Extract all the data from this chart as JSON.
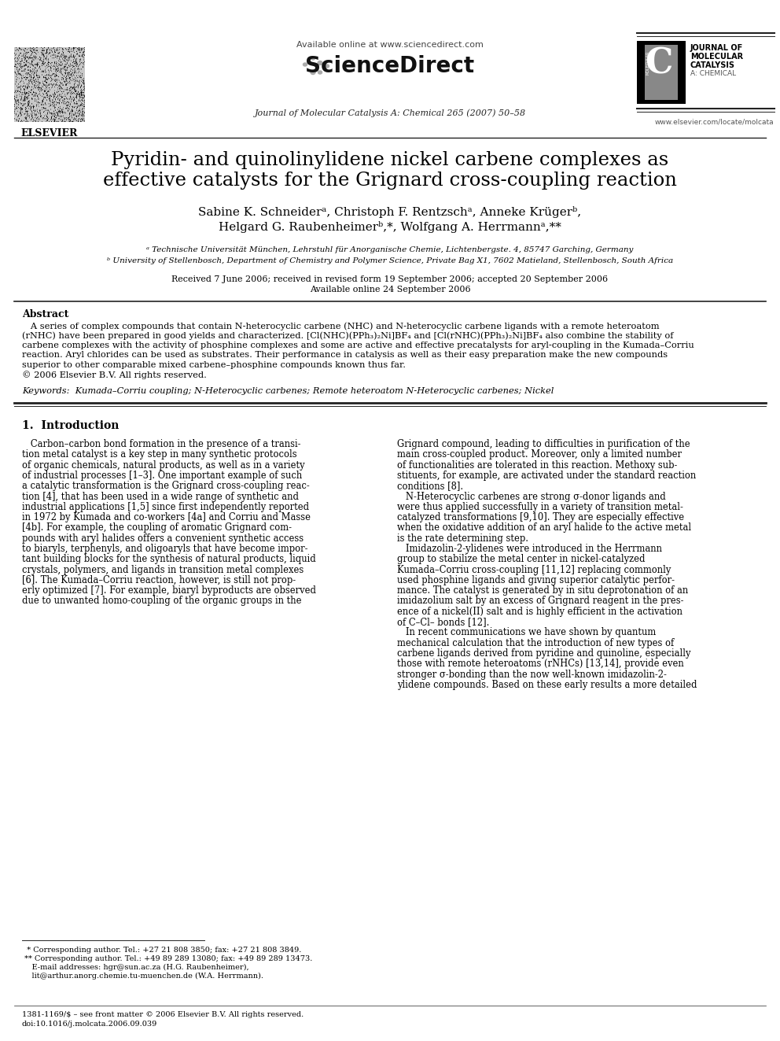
{
  "bg_color": "#ffffff",
  "header_available_online": "Available online at www.sciencedirect.com",
  "journal_line": "Journal of Molecular Catalysis A: Chemical 265 (2007) 50–58",
  "elsevier_url": "www.elsevier.com/locate/molcata",
  "title_line1": "Pyridin- and quinolinylidene nickel carbene complexes as",
  "title_line2": "effective catalysts for the Grignard cross-coupling reaction",
  "authors": "Sabine K. Schneiderᵃ, Christoph F. Rentzschᵃ, Anneke Krügerᵇ,",
  "authors2": "Helgard G. Raubenheimerᵇ,*, Wolfgang A. Herrmannᵃ,**",
  "affil_a": "ᵃ Technische Universität München, Lehrstuhl für Anorganische Chemie, Lichtenbergste. 4, 85747 Garching, Germany",
  "affil_b": "ᵇ University of Stellenbosch, Department of Chemistry and Polymer Science, Private Bag X1, 7602 Matieland, Stellenbosch, South Africa",
  "received": "Received 7 June 2006; received in revised form 19 September 2006; accepted 20 September 2006",
  "available": "Available online 24 September 2006",
  "abstract_title": "Abstract",
  "abs_lines": [
    "   A series of complex compounds that contain N-heterocyclic carbene (NHC) and N-heterocyclic carbene ligands with a remote heteroatom",
    "(rNHC) have been prepared in good yields and characterized. [Cl(NHC)(PPh₃)₂Ni]BF₄ and [Cl(rNHC)(PPh₃)₂Ni]BF₄ also combine the stability of",
    "carbene complexes with the activity of phosphine complexes and some are active and effective precatalysts for aryl-coupling in the Kumada–Corriu",
    "reaction. Aryl chlorides can be used as substrates. Their performance in catalysis as well as their easy preparation make the new compounds",
    "superior to other comparable mixed carbene–phosphine compounds known thus far.",
    "© 2006 Elsevier B.V. All rights reserved."
  ],
  "keywords": "Keywords:  Kumada–Corriu coupling; N-Heterocyclic carbenes; Remote heteroatom N-Heterocyclic carbenes; Nickel",
  "section1_title": "1.  Introduction",
  "col1_lines": [
    "   Carbon–carbon bond formation in the presence of a transi-",
    "tion metal catalyst is a key step in many synthetic protocols",
    "of organic chemicals, natural products, as well as in a variety",
    "of industrial processes [1–3]. One important example of such",
    "a catalytic transformation is the Grignard cross-coupling reac-",
    "tion [4], that has been used in a wide range of synthetic and",
    "industrial applications [1,5] since first independently reported",
    "in 1972 by Kumada and co-workers [4a] and Corriu and Masse",
    "[4b]. For example, the coupling of aromatic Grignard com-",
    "pounds with aryl halides offers a convenient synthetic access",
    "to biaryls, terphenyls, and oligoaryls that have become impor-",
    "tant building blocks for the synthesis of natural products, liquid",
    "crystals, polymers, and ligands in transition metal complexes",
    "[6]. The Kumada–Corriu reaction, however, is still not prop-",
    "erly optimized [7]. For example, biaryl byproducts are observed",
    "due to unwanted homo-coupling of the organic groups in the"
  ],
  "col2_lines": [
    "Grignard compound, leading to difficulties in purification of the",
    "main cross-coupled product. Moreover, only a limited number",
    "of functionalities are tolerated in this reaction. Methoxy sub-",
    "stituents, for example, are activated under the standard reaction",
    "conditions [8].",
    "   N-Heterocyclic carbenes are strong σ-donor ligands and",
    "were thus applied successfully in a variety of transition metal-",
    "catalyzed transformations [9,10]. They are especially effective",
    "when the oxidative addition of an aryl halide to the active metal",
    "is the rate determining step.",
    "   Imidazolin-2-ylidenes were introduced in the Herrmann",
    "group to stabilize the metal center in nickel-catalyzed",
    "Kumada–Corriu cross-coupling [11,12] replacing commonly",
    "used phosphine ligands and giving superior catalytic perfor-",
    "mance. The catalyst is generated by in situ deprotonation of an",
    "imidazolium salt by an excess of Grignard reagent in the pres-",
    "ence of a nickel(II) salt and is highly efficient in the activation",
    "of C–Cl– bonds [12].",
    "   In recent communications we have shown by quantum",
    "mechanical calculation that the introduction of new types of",
    "carbene ligands derived from pyridine and quinoline, especially",
    "those with remote heteroatoms (rNHCs) [13,14], provide even",
    "stronger σ-bonding than the now well-known imidazolin-2-",
    "ylidene compounds. Based on these early results a more detailed"
  ],
  "fn_lines": [
    "  * Corresponding author. Tel.: +27 21 808 3850; fax: +27 21 808 3849.",
    " ** Corresponding author. Tel.: +49 89 289 13080; fax: +49 89 289 13473.",
    "    E-mail addresses: hgr@sun.ac.za (H.G. Raubenheimer),",
    "    lit@arthur.anorg.chemie.tu-muenchen.de (W.A. Herrmann)."
  ],
  "footer_issn": "1381-1169/$ – see front matter © 2006 Elsevier B.V. All rights reserved.",
  "footer_doi": "doi:10.1016/j.molcata.2006.09.039",
  "elsevier_text": "ELSEVIER",
  "sd_text": "ScienceDirect",
  "jmc_line1": "JOURNAL OF",
  "jmc_line2": "MOLECULAR",
  "jmc_line3": "CATALYSIS",
  "jmc_line4": "A: CHEMICAL",
  "jmc_c": "C"
}
